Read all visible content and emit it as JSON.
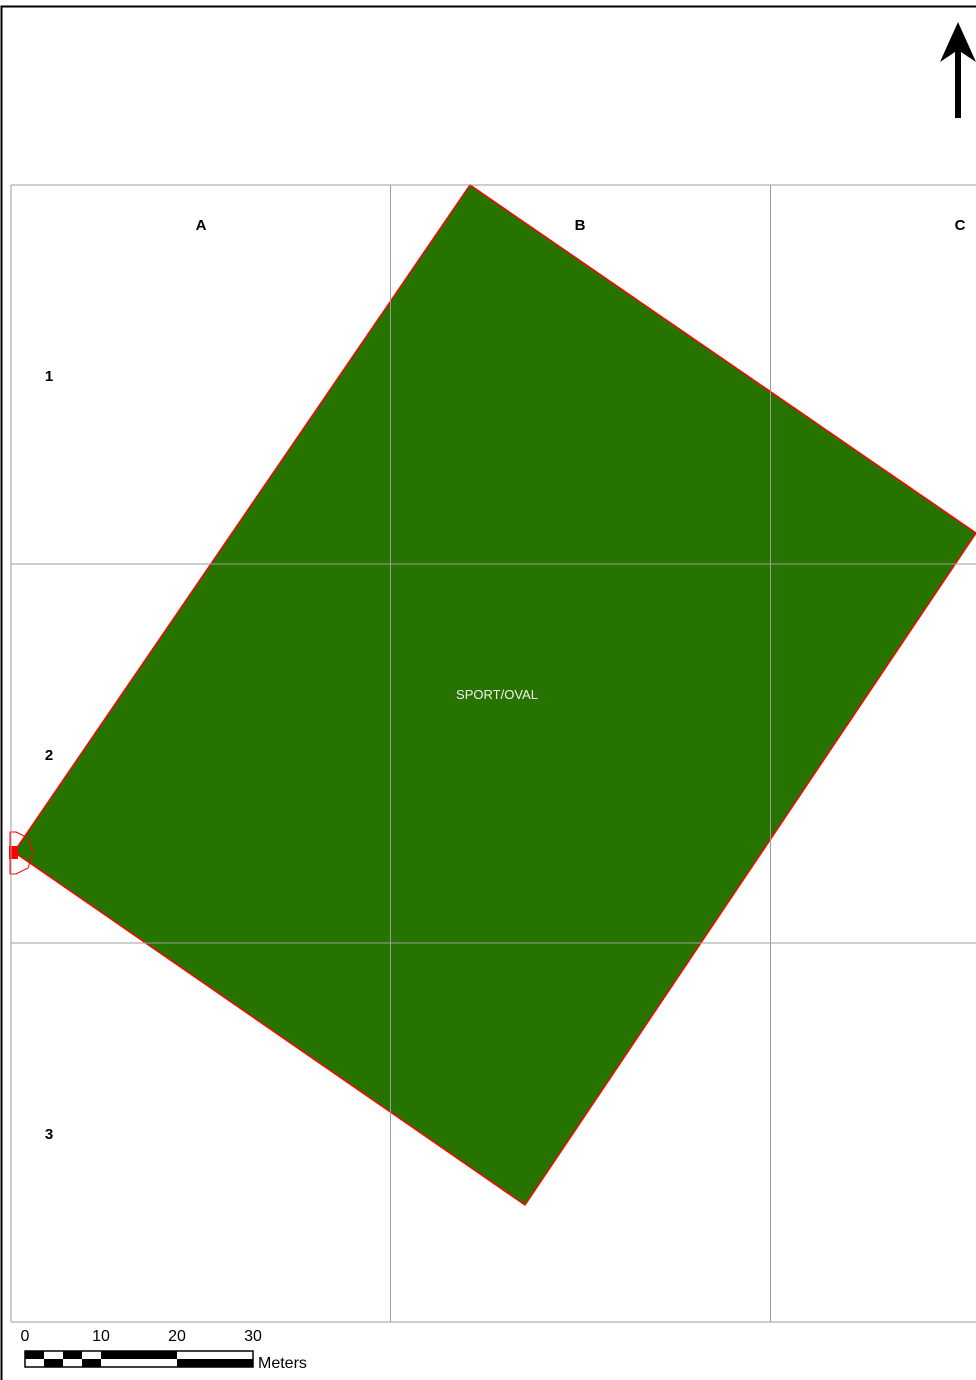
{
  "map": {
    "feature": {
      "label": "SPORT/OVAL",
      "fill_color": "#267300",
      "outline_color": "#ff0000"
    },
    "grid": {
      "columns": [
        "A",
        "B",
        "C"
      ],
      "rows": [
        "1",
        "2",
        "3"
      ],
      "line_color": "#9c9c9c"
    },
    "north_arrow": {
      "icon": "north-arrow-icon"
    },
    "scale_bar": {
      "ticks": [
        "0",
        "10",
        "20",
        "30"
      ],
      "units": "Meters"
    }
  }
}
